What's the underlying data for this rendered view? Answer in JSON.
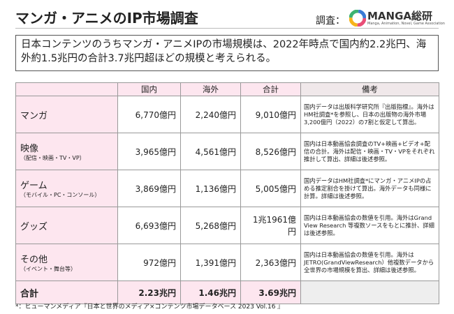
{
  "header": {
    "title": "マンガ・アニメのIP市場調査",
    "source_label": "調査：",
    "logo_name": "MANGA総研",
    "logo_sub": "Manga, Animation, Novel, Game Association"
  },
  "summary": "日本コンテンツのうちマンガ・アニメIPの市場規模は、2022年時点で国内約2.2兆円、海外約1.5兆円の合計3.7兆円超ほどの規模と考えられる。",
  "table": {
    "columns": [
      "国内",
      "海外",
      "合計",
      "備考"
    ],
    "rows": [
      {
        "label": "マンガ",
        "cells": [
          "6,770億円",
          "2,240億円",
          "9,010億円"
        ],
        "note": "国内データは出版科学研究所『出版指標』。海外はHM社調査*を参照し、日本の出版物の海外市場3,200億円（2022）の7割と仮定して算出。"
      },
      {
        "label": "映像",
        "sub": "（配信・映画・TV・VP）",
        "cells": [
          "3,965億円",
          "4,561億円",
          "8,526億円"
        ],
        "note": "国内は日本動画協会調査のTV+映画+ビデオ+配信の合計。海外は配信・映画・TV・VPをそれぞれ推計して算出、詳細は後述参照。"
      },
      {
        "label": "ゲーム",
        "sub": "（モバイル・PC・コンソール）",
        "cells": [
          "3,869億円",
          "1,136億円",
          "5,005億円"
        ],
        "note": "国内データはHM社調査*にマンガ・アニメIPの占める推定割合を掛けて算出。海外データも同様に計算。詳細は後述参照。"
      },
      {
        "label": "グッズ",
        "cells": [
          "6,693億円",
          "5,268億円",
          "1兆1961億円"
        ],
        "note": "国内は日本動画協会の数値を引用。海外はGrand View Research 等複数ソースをもとに推計、詳細は後述参照。"
      },
      {
        "label": "その他",
        "sub": "（イベント・舞台等）",
        "cells": [
          "972億円",
          "1,391億円",
          "2,363億円"
        ],
        "note": "国内は日本動画協会の数値を引用。海外はJETRO(GrandViewResearch）他複数データから全世界の市場規模を算出、詳細は後述参照。"
      },
      {
        "label": "合計",
        "cells": [
          "2.23兆円",
          "1.46兆円",
          "3.69兆円"
        ]
      }
    ]
  },
  "footnote": "*：ヒューマンメディア『日本と世界のメディア×コンテンツ市場データベース 2023 Vol.16 』"
}
